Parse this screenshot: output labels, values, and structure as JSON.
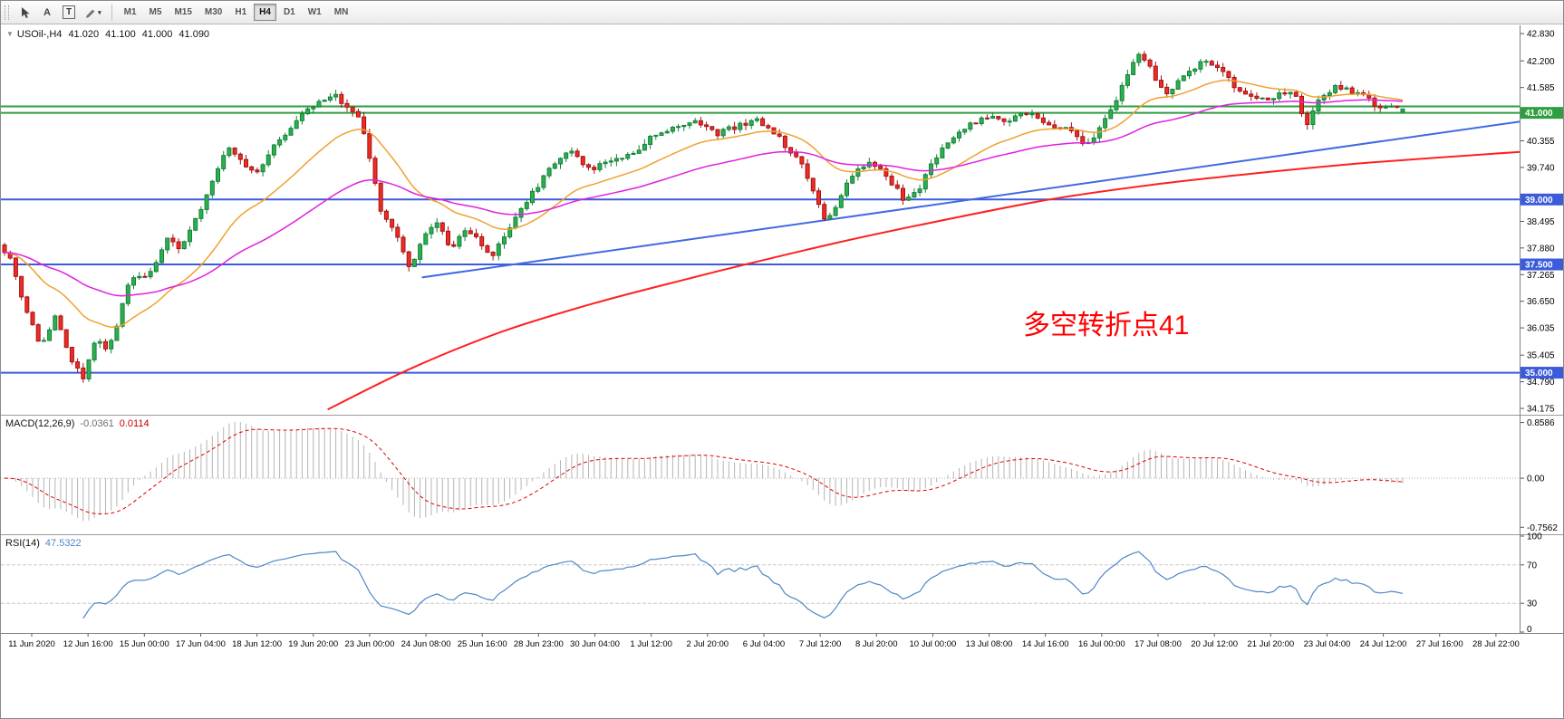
{
  "toolbar": {
    "tools": [
      {
        "name": "cursor",
        "label": ""
      },
      {
        "name": "text-label",
        "label": "A"
      },
      {
        "name": "text",
        "label": "T"
      },
      {
        "name": "drawing",
        "label": ""
      }
    ],
    "timeframes": [
      {
        "label": "M1"
      },
      {
        "label": "M5"
      },
      {
        "label": "M15"
      },
      {
        "label": "M30"
      },
      {
        "label": "H1"
      },
      {
        "label": "H4",
        "active": true
      },
      {
        "label": "D1"
      },
      {
        "label": "W1"
      },
      {
        "label": "MN"
      }
    ]
  },
  "chart": {
    "symbol_period": "USOil-,H4",
    "open": "41.020",
    "high": "41.100",
    "low": "41.000",
    "close": "41.090",
    "annotation": {
      "text": "多空转折点41",
      "color": "#ff0000"
    }
  },
  "macd": {
    "label": "MACD(12,26,9)",
    "value": "-0.0361",
    "signal": "0.0114",
    "range": [
      -0.85,
      0.95
    ],
    "ticks": [
      {
        "v": 0.8586,
        "label": "0.8586"
      },
      {
        "v": 0,
        "label": "0.00"
      },
      {
        "v": -0.7562,
        "label": "-0.7562"
      }
    ]
  },
  "rsi": {
    "label": "RSI(14)",
    "value": "47.5322",
    "levels": [
      70,
      30
    ],
    "ticks": [
      {
        "v": 100,
        "label": "100"
      },
      {
        "v": 70,
        "label": "70"
      },
      {
        "v": 30,
        "label": "30"
      },
      {
        "v": 0,
        "label": "0"
      }
    ]
  },
  "chart_data": {
    "type": "candlestick",
    "symbol": "USOil",
    "period": "H4",
    "bars": 250,
    "seed": 987654,
    "volatility": 0.14,
    "wick": 0.12,
    "price_min": 34.05,
    "price_max": 43.0,
    "up_color": "#2fae4e",
    "up_border": "#12823a",
    "down_color": "#ef2b24",
    "down_border": "#a31313",
    "anchors": [
      [
        0.0,
        37.95
      ],
      [
        0.008,
        37.7
      ],
      [
        0.018,
        36.4
      ],
      [
        0.03,
        35.6
      ],
      [
        0.04,
        36.3
      ],
      [
        0.05,
        35.3
      ],
      [
        0.06,
        34.85
      ],
      [
        0.068,
        35.75
      ],
      [
        0.078,
        35.55
      ],
      [
        0.093,
        37.1
      ],
      [
        0.108,
        37.35
      ],
      [
        0.12,
        38.15
      ],
      [
        0.13,
        37.8
      ],
      [
        0.143,
        38.75
      ],
      [
        0.153,
        39.55
      ],
      [
        0.163,
        40.3
      ],
      [
        0.173,
        39.9
      ],
      [
        0.184,
        39.6
      ],
      [
        0.198,
        40.3
      ],
      [
        0.213,
        40.9
      ],
      [
        0.228,
        41.2
      ],
      [
        0.238,
        41.45
      ],
      [
        0.248,
        41.15
      ],
      [
        0.258,
        40.85
      ],
      [
        0.266,
        39.7
      ],
      [
        0.273,
        38.65
      ],
      [
        0.283,
        38.3
      ],
      [
        0.293,
        37.4
      ],
      [
        0.303,
        38.15
      ],
      [
        0.313,
        38.5
      ],
      [
        0.323,
        37.85
      ],
      [
        0.333,
        38.3
      ],
      [
        0.343,
        38.0
      ],
      [
        0.353,
        37.7
      ],
      [
        0.368,
        38.55
      ],
      [
        0.383,
        39.25
      ],
      [
        0.398,
        39.9
      ],
      [
        0.408,
        40.1
      ],
      [
        0.423,
        39.7
      ],
      [
        0.438,
        39.9
      ],
      [
        0.453,
        40.1
      ],
      [
        0.468,
        40.5
      ],
      [
        0.483,
        40.7
      ],
      [
        0.498,
        40.8
      ],
      [
        0.513,
        40.5
      ],
      [
        0.528,
        40.7
      ],
      [
        0.543,
        40.8
      ],
      [
        0.558,
        40.4
      ],
      [
        0.573,
        39.8
      ],
      [
        0.583,
        39.1
      ],
      [
        0.591,
        38.5
      ],
      [
        0.6,
        38.9
      ],
      [
        0.608,
        39.5
      ],
      [
        0.623,
        39.9
      ],
      [
        0.638,
        39.4
      ],
      [
        0.648,
        38.9
      ],
      [
        0.658,
        39.3
      ],
      [
        0.673,
        40.2
      ],
      [
        0.688,
        40.6
      ],
      [
        0.703,
        40.9
      ],
      [
        0.718,
        40.8
      ],
      [
        0.733,
        41.0
      ],
      [
        0.748,
        40.8
      ],
      [
        0.763,
        40.6
      ],
      [
        0.778,
        40.2
      ],
      [
        0.788,
        40.8
      ],
      [
        0.798,
        41.3
      ],
      [
        0.808,
        42.05
      ],
      [
        0.816,
        42.45
      ],
      [
        0.826,
        41.8
      ],
      [
        0.836,
        41.4
      ],
      [
        0.848,
        41.9
      ],
      [
        0.86,
        42.2
      ],
      [
        0.87,
        42.1
      ],
      [
        0.883,
        41.6
      ],
      [
        0.898,
        41.3
      ],
      [
        0.913,
        41.4
      ],
      [
        0.926,
        41.5
      ],
      [
        0.934,
        40.6
      ],
      [
        0.943,
        41.35
      ],
      [
        0.956,
        41.6
      ],
      [
        0.968,
        41.5
      ],
      [
        0.978,
        41.3
      ],
      [
        0.988,
        41.1
      ],
      [
        1.0,
        41.09
      ]
    ],
    "levels": [
      {
        "value": 41.15,
        "color": "#2E9E3F",
        "width": 2
      },
      {
        "value": 41.0,
        "color": "#2E9E3F",
        "width": 2,
        "label": "41.000"
      },
      {
        "value": 39.0,
        "color": "#3b5bdb",
        "width": 2,
        "label": "39.000"
      },
      {
        "value": 37.5,
        "color": "#3b5bdb",
        "width": 2,
        "label": "37.500"
      },
      {
        "value": 35.0,
        "color": "#3b5bdb",
        "width": 2,
        "label": "35.000"
      }
    ],
    "y_ticks": [
      {
        "v": 42.83,
        "label": "42.830"
      },
      {
        "v": 42.2,
        "label": "42.200"
      },
      {
        "v": 41.585,
        "label": "41.585"
      },
      {
        "v": 40.355,
        "label": "40.355"
      },
      {
        "v": 39.74,
        "label": "39.740"
      },
      {
        "v": 38.495,
        "label": "38.495"
      },
      {
        "v": 37.88,
        "label": "37.880"
      },
      {
        "v": 37.265,
        "label": "37.265"
      },
      {
        "v": 36.65,
        "label": "36.650"
      },
      {
        "v": 36.035,
        "label": "36.035"
      },
      {
        "v": 35.405,
        "label": "35.405"
      },
      {
        "v": 34.79,
        "label": "34.790"
      },
      {
        "v": 34.175,
        "label": "34.175"
      }
    ],
    "x_labels": [
      "11 Jun 2020",
      "12 Jun 16:00",
      "15 Jun 00:00",
      "17 Jun 04:00",
      "18 Jun 12:00",
      "19 Jun 20:00",
      "23 Jun 00:00",
      "24 Jun 08:00",
      "25 Jun 16:00",
      "28 Jun 23:00",
      "30 Jun 04:00",
      "1 Jul 12:00",
      "2 Jul 20:00",
      "6 Jul 04:00",
      "7 Jul 12:00",
      "8 Jul 20:00",
      "10 Jul 00:00",
      "13 Jul 08:00",
      "14 Jul 16:00",
      "16 Jul 00:00",
      "17 Jul 08:00",
      "20 Jul 12:00",
      "21 Jul 20:00",
      "23 Jul 04:00",
      "24 Jul 12:00",
      "27 Jul 16:00",
      "28 Jul 22:00"
    ],
    "ma": {
      "fast_period": 21,
      "fast_color": "#f0a030",
      "mid_period": 55,
      "mid_color": "#e020e0"
    },
    "red_line": [
      [
        0.215,
        34.15
      ],
      [
        0.27,
        35.1
      ],
      [
        0.33,
        35.95
      ],
      [
        0.39,
        36.6
      ],
      [
        0.45,
        37.15
      ],
      [
        0.49,
        37.5
      ],
      [
        0.55,
        38.0
      ],
      [
        0.61,
        38.45
      ],
      [
        0.69,
        39.0
      ],
      [
        0.76,
        39.35
      ],
      [
        0.83,
        39.62
      ],
      [
        0.9,
        39.85
      ],
      [
        1.0,
        40.1
      ]
    ],
    "red_color": "#ff2020",
    "trendline": {
      "x0": 0.277,
      "p0": 37.2,
      "x1": 1.0,
      "p1": 40.8,
      "color": "#4169E1"
    },
    "macd_colors": {
      "histogram": "#b4b4b4",
      "signal": "#e00000"
    },
    "rsi_color": "#4f86c6"
  }
}
